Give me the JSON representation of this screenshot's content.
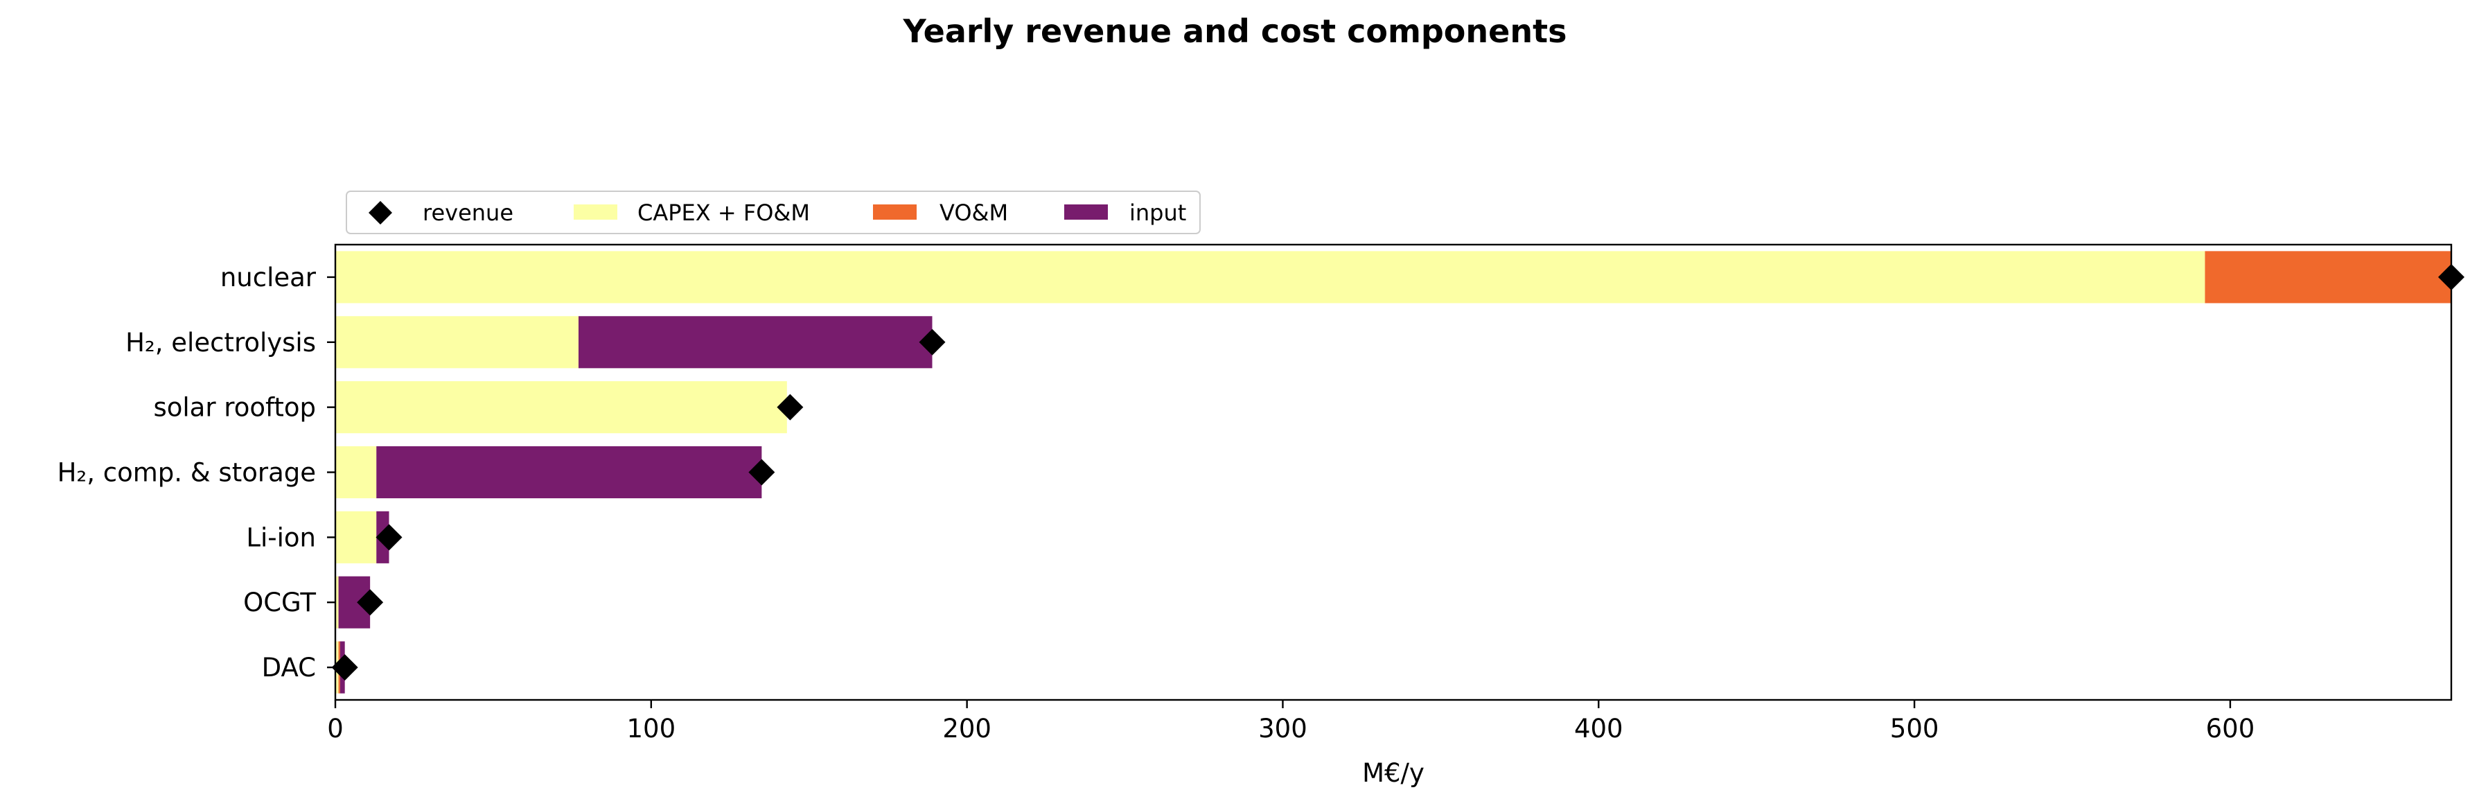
{
  "chart_data": {
    "type": "bar",
    "orientation": "horizontal",
    "stacked": true,
    "title": "Yearly revenue and cost components",
    "xlabel": "M€/y",
    "ylabel": "",
    "xlim": [
      0,
      670
    ],
    "xticks": [
      0,
      100,
      200,
      300,
      400,
      500,
      600
    ],
    "categories": [
      "DAC",
      "OCGT",
      "Li-ion",
      "H₂, comp. & storage",
      "solar rooftop",
      "H₂, electrolysis",
      "nuclear"
    ],
    "series": [
      {
        "name": "CAPEX + FO&M",
        "color": "#fcffa4",
        "values": [
          1,
          1,
          13,
          13,
          143,
          77,
          592
        ]
      },
      {
        "name": "VO&M",
        "color": "#f0692c",
        "values": [
          0.5,
          0,
          0,
          0,
          0,
          0,
          78
        ]
      },
      {
        "name": "input",
        "color": "#781c6d",
        "values": [
          1.5,
          10,
          4,
          122,
          0,
          112,
          0
        ]
      }
    ],
    "revenue": {
      "name": "revenue",
      "color": "#000000",
      "marker": "diamond",
      "values": [
        3,
        11,
        17,
        135,
        144,
        189,
        670
      ]
    },
    "legend_position": "top-left",
    "grid": false
  }
}
